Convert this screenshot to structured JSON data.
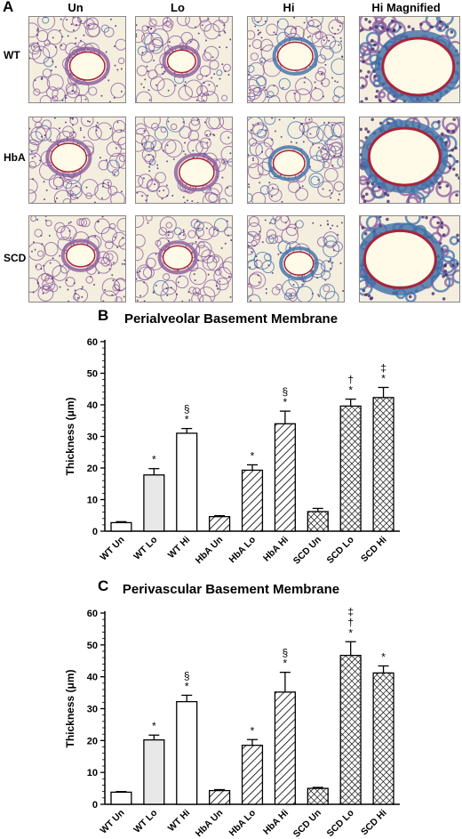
{
  "panel_a": {
    "letter": "A",
    "columns": [
      "Un",
      "Lo",
      "Hi",
      "Hi Magnified"
    ],
    "rows": [
      "WT",
      "HbA",
      "SCD"
    ]
  },
  "colors": {
    "bar_white": "#ffffff",
    "bar_light": "#e8e8e8",
    "stroke": "#000000",
    "tissue_bg": "#f4eedf",
    "tissue_purple": "#8a5a9c",
    "tissue_blue": "#3f6fa8",
    "tissue_red": "#a8243a"
  },
  "chart_data": [
    {
      "letter": "B",
      "type": "bar",
      "title": "Perialveolar Basement Membrane",
      "ylabel": "Thickness (μm)",
      "xlabel": "",
      "ylim": [
        0,
        60
      ],
      "yticks": [
        0,
        10,
        20,
        30,
        40,
        50,
        60
      ],
      "categories": [
        "WT Un",
        "WT Lo",
        "WT Hi",
        "HbA Un",
        "HbA Lo",
        "HbA Hi",
        "SCD Un",
        "SCD Lo",
        "SCD Hi"
      ],
      "values": [
        2.7,
        17.8,
        31.0,
        4.6,
        19.3,
        34.0,
        6.2,
        39.6,
        42.3
      ],
      "errors": [
        0.3,
        2.0,
        1.5,
        0.3,
        1.7,
        4.0,
        1.0,
        2.2,
        3.2
      ],
      "patterns": [
        "white",
        "light",
        "white",
        "hatch",
        "hatch",
        "hatch",
        "cross",
        "cross",
        "cross"
      ],
      "annotations": [
        "",
        "*",
        "§\n*",
        "",
        "*",
        "§\n*",
        "",
        "†\n*",
        "‡\n*"
      ]
    },
    {
      "letter": "C",
      "type": "bar",
      "title": "Perivascular Basement Membrane",
      "ylabel": "Thickness (μm)",
      "xlabel": "",
      "ylim": [
        0,
        60
      ],
      "yticks": [
        0,
        10,
        20,
        30,
        40,
        50,
        60
      ],
      "categories": [
        "WT Un",
        "WT Lo",
        "WT Hi",
        "HbA Un",
        "HbA Lo",
        "HbA Hi",
        "SCD Un",
        "SCD Lo",
        "SCD Hi"
      ],
      "values": [
        3.8,
        20.2,
        32.2,
        4.3,
        18.5,
        35.2,
        5.0,
        46.7,
        41.2
      ],
      "errors": [
        0.2,
        1.5,
        2.0,
        0.3,
        1.8,
        6.2,
        0.3,
        4.3,
        2.2
      ],
      "patterns": [
        "white",
        "light",
        "white",
        "hatch",
        "hatch",
        "hatch",
        "cross",
        "cross",
        "cross"
      ],
      "annotations": [
        "",
        "*",
        "§\n*",
        "",
        "*",
        "§\n*",
        "",
        "‡\n†\n*",
        "*"
      ]
    }
  ]
}
